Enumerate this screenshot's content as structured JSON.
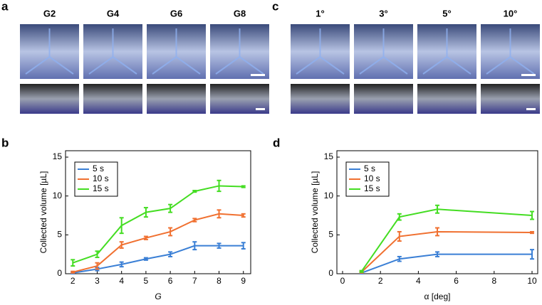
{
  "panels": [
    {
      "label": "a",
      "images": [
        "G2",
        "G4",
        "G6",
        "G8"
      ]
    },
    {
      "label": "c",
      "images": [
        "1°",
        "3°",
        "5°",
        "10°"
      ]
    }
  ],
  "chart_data": [
    {
      "type": "line",
      "label": "b",
      "xlabel": "G",
      "ylabel": "Collected volume [µL]",
      "x": [
        2,
        3,
        4,
        5,
        6,
        7,
        8,
        9
      ],
      "xlim": [
        1.7,
        9.3
      ],
      "xticks": [
        2,
        3,
        4,
        5,
        6,
        7,
        8,
        9
      ],
      "ylim": [
        0,
        15
      ],
      "yticks": [
        0,
        5,
        10,
        15
      ],
      "legend": "upper-left",
      "series": [
        {
          "name": "5 s",
          "color": "#3a7fd5",
          "values": [
            0.1,
            0.6,
            1.2,
            1.9,
            2.5,
            3.6,
            3.6,
            3.6
          ],
          "errors": [
            0.1,
            0.2,
            0.3,
            0.15,
            0.3,
            0.5,
            0.3,
            0.4
          ]
        },
        {
          "name": "10 s",
          "color": "#f07030",
          "values": [
            0.2,
            1.0,
            3.7,
            4.6,
            5.4,
            6.9,
            7.7,
            7.5
          ],
          "errors": [
            0.1,
            0.4,
            0.4,
            0.2,
            0.5,
            0.2,
            0.5,
            0.2
          ]
        },
        {
          "name": "15 s",
          "color": "#44dd22",
          "values": [
            1.4,
            2.5,
            6.2,
            7.9,
            8.4,
            10.6,
            11.3,
            11.2
          ],
          "errors": [
            0.4,
            0.4,
            1.0,
            0.6,
            0.5,
            0.1,
            0.7,
            0.1
          ]
        }
      ]
    },
    {
      "type": "line",
      "label": "d",
      "xlabel": "α [deg]",
      "ylabel": "Collected volume [µL]",
      "x": [
        1,
        3,
        5,
        10
      ],
      "xlim": [
        -0.3,
        10.3
      ],
      "xticks": [
        0,
        2,
        4,
        6,
        8,
        10
      ],
      "ylim": [
        0,
        15
      ],
      "yticks": [
        0,
        5,
        10,
        15
      ],
      "legend": "upper-left",
      "series": [
        {
          "name": "5 s",
          "color": "#3a7fd5",
          "values": [
            0.1,
            1.9,
            2.5,
            2.5
          ],
          "errors": [
            0.1,
            0.3,
            0.3,
            0.6
          ]
        },
        {
          "name": "10 s",
          "color": "#f07030",
          "values": [
            0.2,
            4.8,
            5.4,
            5.3
          ],
          "errors": [
            0.1,
            0.6,
            0.5,
            0.1
          ]
        },
        {
          "name": "15 s",
          "color": "#44dd22",
          "values": [
            0.3,
            7.3,
            8.3,
            7.5
          ],
          "errors": [
            0.1,
            0.4,
            0.5,
            0.5
          ]
        }
      ]
    }
  ]
}
